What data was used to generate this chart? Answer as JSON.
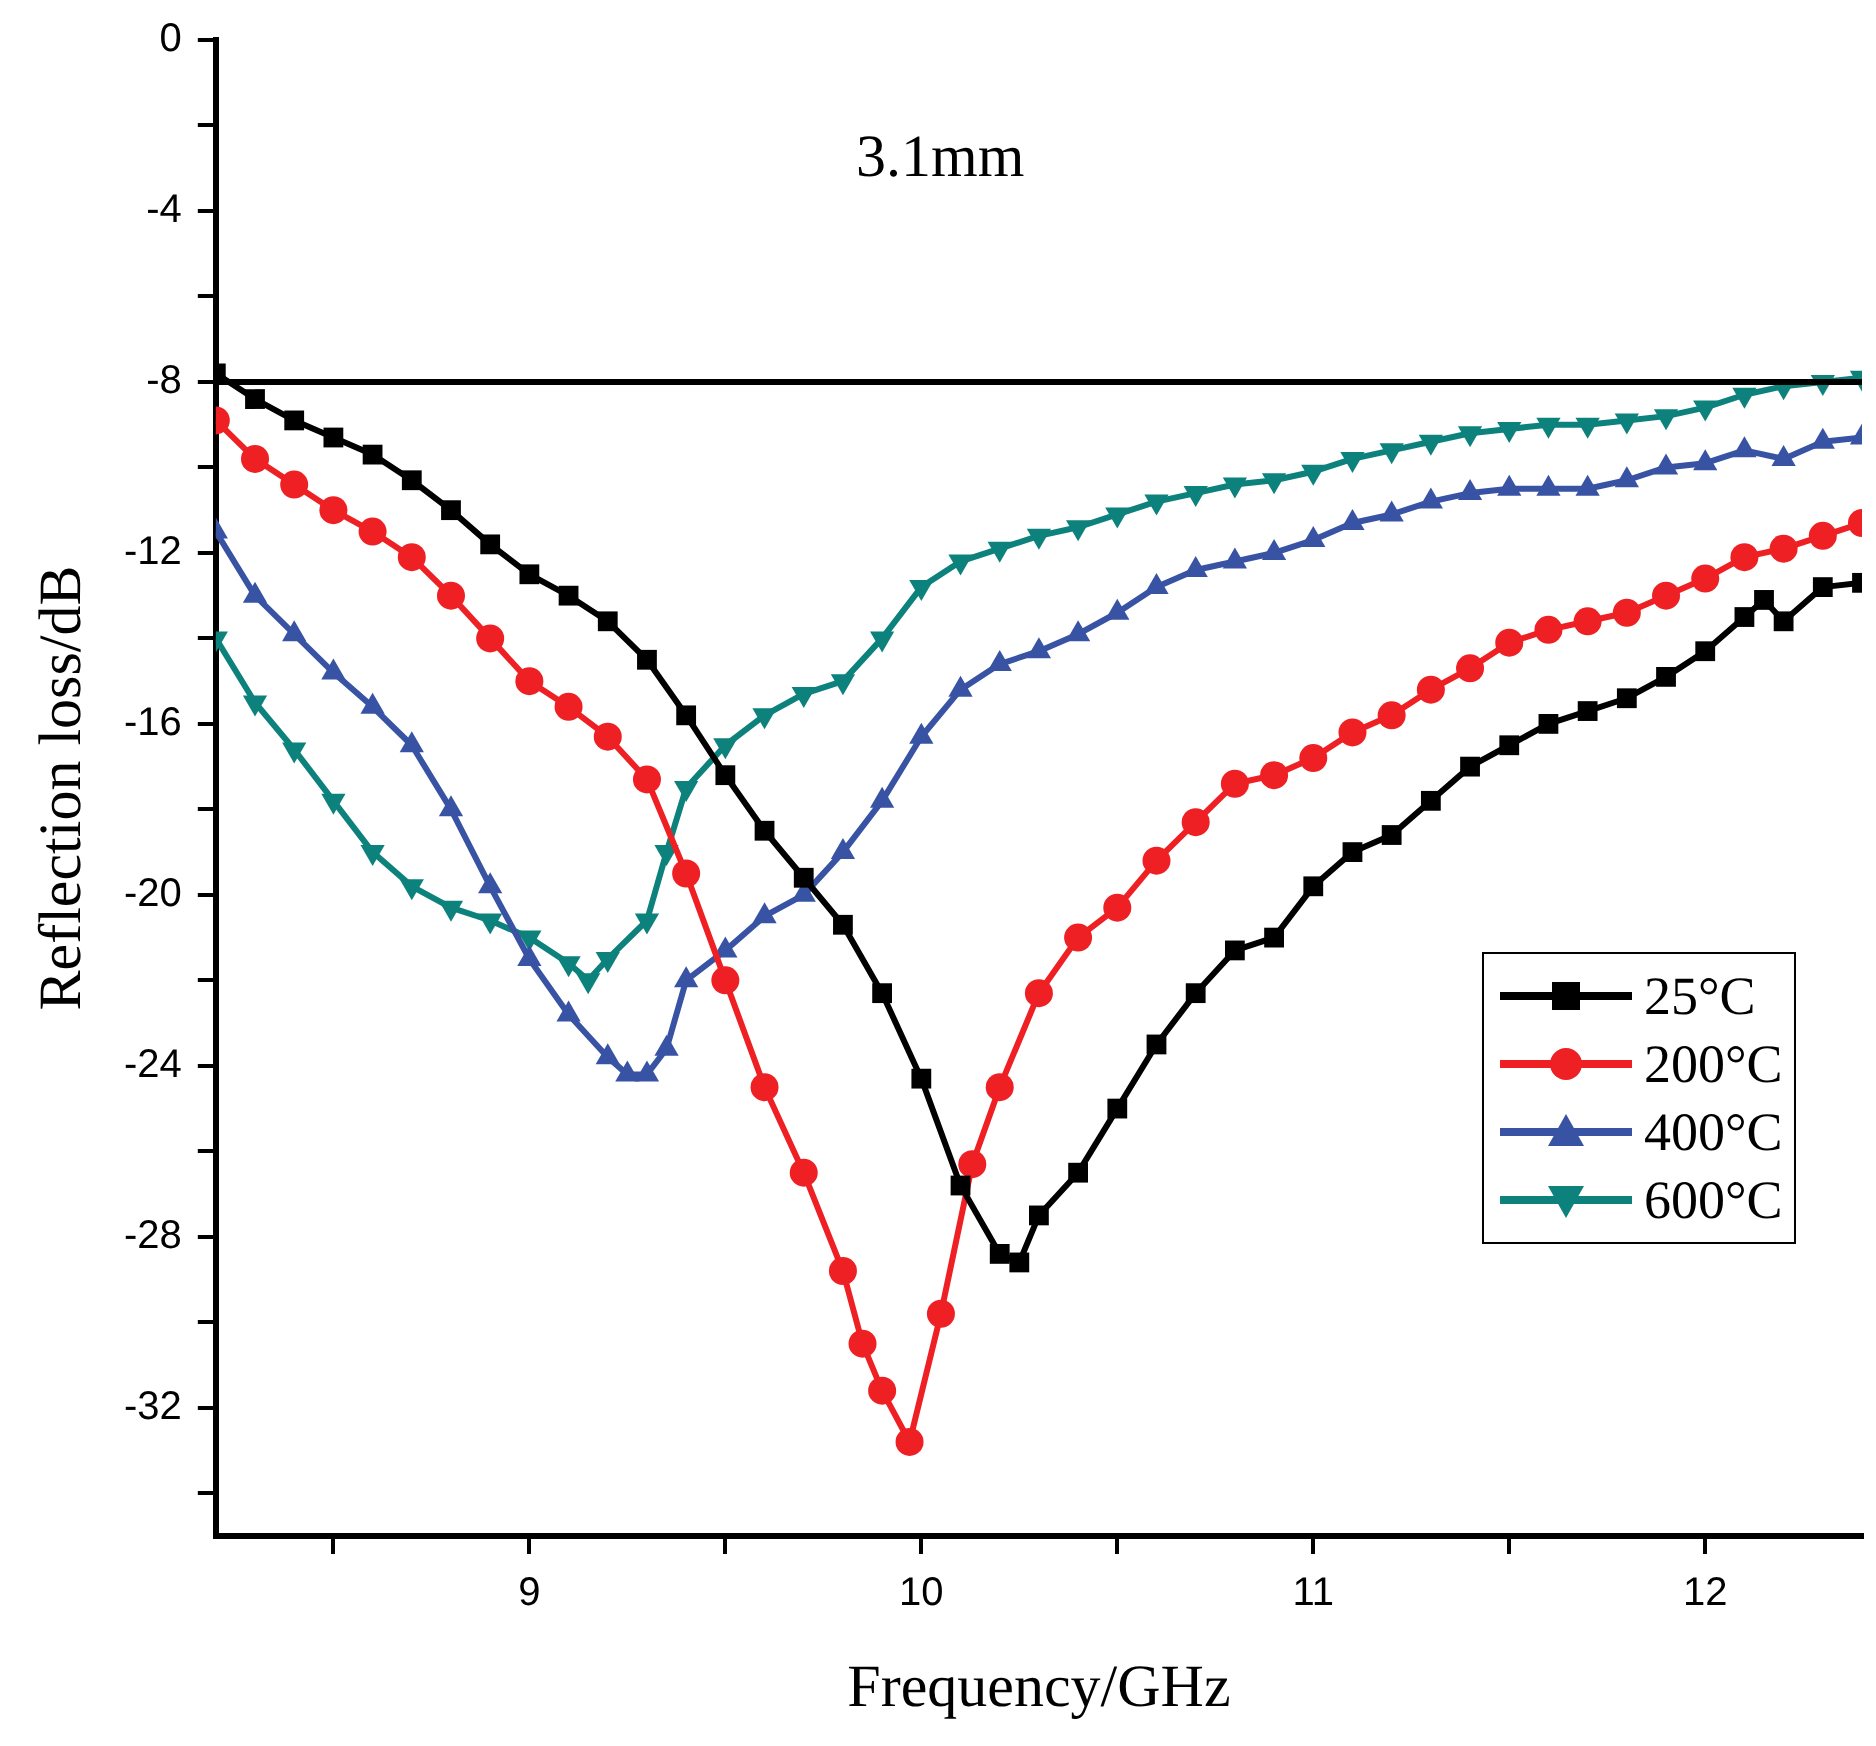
{
  "chart_data": {
    "type": "line",
    "xlabel": "Frequency/GHz",
    "ylabel": "Reflection loss/dB",
    "annotations": [
      "3.1mm"
    ],
    "xlim": [
      8.2,
      12.4
    ],
    "ylim": [
      -35,
      0
    ],
    "xticks": [
      {
        "value": 8.5,
        "label": null
      },
      9,
      {
        "value": 9.5,
        "label": null
      },
      10,
      {
        "value": 10.5,
        "label": null
      },
      11,
      {
        "value": 11.5,
        "label": null
      },
      12
    ],
    "yticks": [
      0,
      {
        "value": -2,
        "label": null
      },
      -4,
      {
        "value": -6,
        "label": null
      },
      -8,
      {
        "value": -10,
        "label": null
      },
      -12,
      {
        "value": -14,
        "label": null
      },
      -16,
      {
        "value": -18,
        "label": null
      },
      -20,
      {
        "value": -22,
        "label": null
      },
      -24,
      {
        "value": -26,
        "label": null
      },
      -28,
      {
        "value": -30,
        "label": null
      },
      -32,
      {
        "value": -34,
        "label": null
      }
    ],
    "grid": false,
    "legend": "right",
    "line_style": "solid",
    "ref_lines": [
      {
        "axis": "y",
        "value": -8,
        "color": "#000000"
      }
    ],
    "series": [
      {
        "name": "25°C",
        "color": "#000000",
        "marker": "square",
        "x": [
          8.2,
          8.3,
          8.4,
          8.5,
          8.6,
          8.7,
          8.8,
          8.9,
          9.0,
          9.1,
          9.2,
          9.3,
          9.4,
          9.5,
          9.6,
          9.7,
          9.8,
          9.9,
          10.0,
          10.1,
          10.2,
          10.25,
          10.3,
          10.4,
          10.5,
          10.6,
          10.7,
          10.8,
          10.9,
          11.0,
          11.1,
          11.2,
          11.3,
          11.4,
          11.5,
          11.6,
          11.7,
          11.8,
          11.9,
          12.0,
          12.1,
          12.15,
          12.2,
          12.3,
          12.4
        ],
        "values": [
          -7.8,
          -8.4,
          -8.9,
          -9.3,
          -9.7,
          -10.3,
          -11.0,
          -11.8,
          -12.5,
          -13.0,
          -13.6,
          -14.5,
          -15.8,
          -17.2,
          -18.5,
          -19.6,
          -20.7,
          -22.3,
          -24.3,
          -26.8,
          -28.4,
          -28.6,
          -27.5,
          -26.5,
          -25.0,
          -23.5,
          -22.3,
          -21.3,
          -21.0,
          -19.8,
          -19.0,
          -18.6,
          -17.8,
          -17.0,
          -16.5,
          -16.0,
          -15.7,
          -15.4,
          -14.9,
          -14.3,
          -13.5,
          -13.1,
          -13.6,
          -12.8,
          -12.7
        ]
      },
      {
        "name": "200°C",
        "color": "#ee2024",
        "marker": "circle",
        "x": [
          8.2,
          8.3,
          8.4,
          8.5,
          8.6,
          8.7,
          8.8,
          8.9,
          9.0,
          9.1,
          9.2,
          9.3,
          9.4,
          9.5,
          9.6,
          9.7,
          9.8,
          9.85,
          9.9,
          9.97,
          10.05,
          10.13,
          10.2,
          10.3,
          10.4,
          10.5,
          10.6,
          10.7,
          10.8,
          10.9,
          11.0,
          11.1,
          11.2,
          11.3,
          11.4,
          11.5,
          11.6,
          11.7,
          11.8,
          11.9,
          12.0,
          12.1,
          12.2,
          12.3,
          12.4
        ],
        "values": [
          -8.9,
          -9.8,
          -10.4,
          -11.0,
          -11.5,
          -12.1,
          -13.0,
          -14.0,
          -15.0,
          -15.6,
          -16.3,
          -17.3,
          -19.5,
          -22.0,
          -24.5,
          -26.5,
          -28.8,
          -30.5,
          -31.6,
          -32.8,
          -29.8,
          -26.3,
          -24.5,
          -22.3,
          -21.0,
          -20.3,
          -19.2,
          -18.3,
          -17.4,
          -17.2,
          -16.8,
          -16.2,
          -15.8,
          -15.2,
          -14.7,
          -14.1,
          -13.8,
          -13.6,
          -13.4,
          -13.0,
          -12.6,
          -12.1,
          -11.9,
          -11.6,
          -11.3
        ]
      },
      {
        "name": "400°C",
        "color": "#3953a4",
        "marker": "triangle",
        "x": [
          8.2,
          8.3,
          8.4,
          8.5,
          8.6,
          8.7,
          8.8,
          8.9,
          9.0,
          9.1,
          9.2,
          9.25,
          9.3,
          9.35,
          9.4,
          9.5,
          9.6,
          9.7,
          9.8,
          9.9,
          10.0,
          10.1,
          10.2,
          10.3,
          10.4,
          10.5,
          10.6,
          10.7,
          10.8,
          10.9,
          11.0,
          11.1,
          11.2,
          11.3,
          11.4,
          11.5,
          11.6,
          11.7,
          11.8,
          11.9,
          12.0,
          12.1,
          12.2,
          12.3,
          12.4
        ],
        "values": [
          -11.5,
          -13.0,
          -13.9,
          -14.8,
          -15.6,
          -16.5,
          -18.0,
          -19.8,
          -21.5,
          -22.8,
          -23.8,
          -24.2,
          -24.2,
          -23.6,
          -22.0,
          -21.3,
          -20.5,
          -20.0,
          -19.0,
          -17.8,
          -16.3,
          -15.2,
          -14.6,
          -14.3,
          -13.9,
          -13.4,
          -12.8,
          -12.4,
          -12.2,
          -12.0,
          -11.7,
          -11.3,
          -11.1,
          -10.8,
          -10.6,
          -10.5,
          -10.5,
          -10.5,
          -10.3,
          -10.0,
          -9.9,
          -9.6,
          -9.8,
          -9.4,
          -9.3
        ]
      },
      {
        "name": "600°C",
        "color": "#0d827c",
        "marker": "triangle-down",
        "x": [
          8.2,
          8.3,
          8.4,
          8.5,
          8.6,
          8.7,
          8.8,
          8.9,
          9.0,
          9.1,
          9.15,
          9.2,
          9.3,
          9.35,
          9.4,
          9.5,
          9.6,
          9.7,
          9.8,
          9.9,
          10.0,
          10.1,
          10.2,
          10.3,
          10.4,
          10.5,
          10.6,
          10.7,
          10.8,
          10.9,
          11.0,
          11.1,
          11.2,
          11.3,
          11.4,
          11.5,
          11.6,
          11.7,
          11.8,
          11.9,
          12.0,
          12.1,
          12.2,
          12.3,
          12.4
        ],
        "values": [
          -14.0,
          -15.5,
          -16.6,
          -17.8,
          -19.0,
          -19.8,
          -20.3,
          -20.6,
          -21.0,
          -21.6,
          -22.0,
          -21.5,
          -20.6,
          -19.0,
          -17.5,
          -16.5,
          -15.8,
          -15.3,
          -15.0,
          -14.0,
          -12.8,
          -12.2,
          -11.9,
          -11.6,
          -11.4,
          -11.1,
          -10.8,
          -10.6,
          -10.4,
          -10.3,
          -10.1,
          -9.8,
          -9.6,
          -9.4,
          -9.2,
          -9.1,
          -9.0,
          -9.0,
          -8.9,
          -8.8,
          -8.6,
          -8.3,
          -8.1,
          -8.0,
          -7.9
        ]
      }
    ]
  }
}
